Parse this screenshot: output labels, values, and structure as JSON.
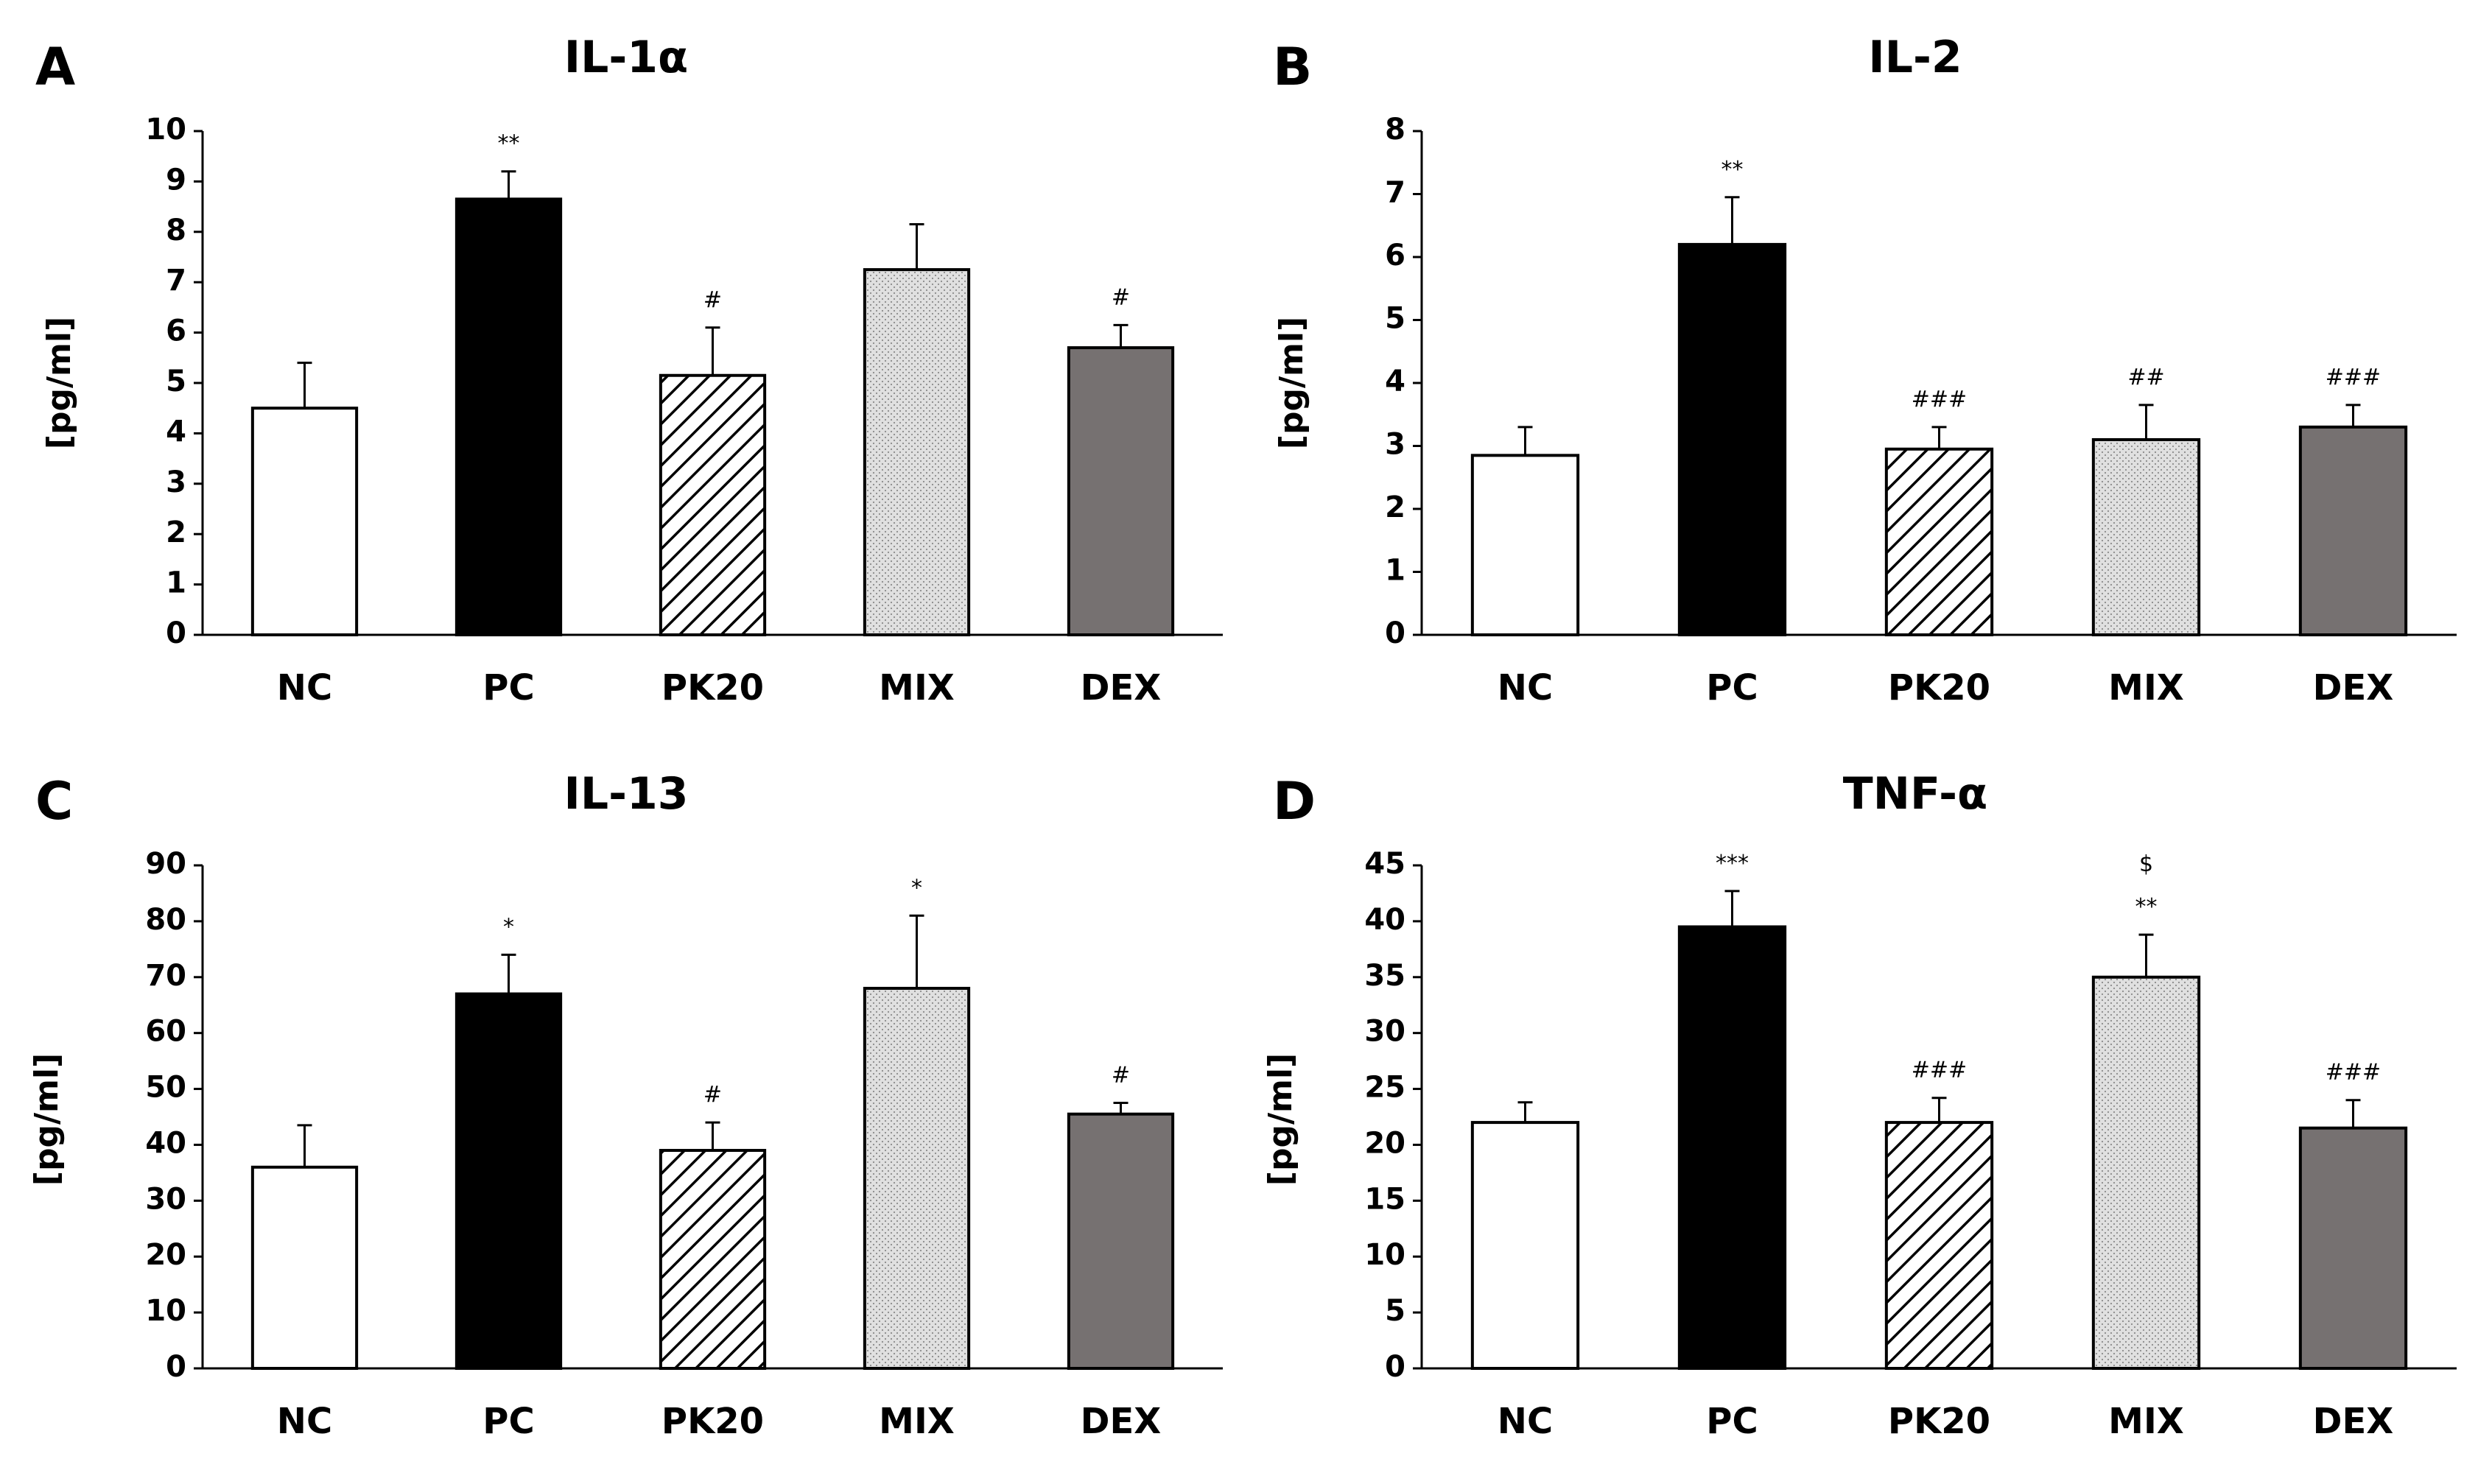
{
  "figure": {
    "legend": {
      "NC": {
        "fill": "#ffffff",
        "pattern": "none"
      },
      "PC": {
        "fill": "#000000",
        "pattern": "none"
      },
      "PK20": {
        "fill": "#ffffff",
        "pattern": "diagonal-hatch"
      },
      "MIX": {
        "fill": "#d9d9d9",
        "pattern": "dots"
      },
      "DEX": {
        "fill": "#767171",
        "pattern": "none"
      }
    }
  },
  "chart_data": [
    {
      "panel": "A",
      "type": "bar",
      "title": "IL-1α",
      "ylabel": "[pg/ml]",
      "categories": [
        "NC",
        "PC",
        "PK20",
        "MIX",
        "DEX"
      ],
      "values": [
        4.5,
        8.65,
        5.15,
        7.25,
        5.7
      ],
      "errors": [
        0.9,
        0.55,
        0.95,
        0.9,
        0.45
      ],
      "significance": [
        "",
        "**",
        "#",
        "",
        "#"
      ],
      "ylim": [
        0,
        10
      ],
      "yticks": [
        0,
        1,
        2,
        3,
        4,
        5,
        6,
        7,
        8,
        9,
        10
      ],
      "grid": false
    },
    {
      "panel": "B",
      "type": "bar",
      "title": "IL-2",
      "ylabel": "[pg/ml]",
      "categories": [
        "NC",
        "PC",
        "PK20",
        "MIX",
        "DEX"
      ],
      "values": [
        2.85,
        6.2,
        2.95,
        3.1,
        3.3
      ],
      "errors": [
        0.45,
        0.75,
        0.35,
        0.55,
        0.35
      ],
      "significance": [
        "",
        "**",
        "###",
        "##",
        "###"
      ],
      "ylim": [
        0,
        8
      ],
      "yticks": [
        0,
        1,
        2,
        3,
        4,
        5,
        6,
        7,
        8
      ],
      "grid": false
    },
    {
      "panel": "C",
      "type": "bar",
      "title": "IL-13",
      "ylabel": "[pg/ml]",
      "categories": [
        "NC",
        "PC",
        "PK20",
        "MIX",
        "DEX"
      ],
      "values": [
        36,
        67,
        39,
        68,
        45.5
      ],
      "errors": [
        7.5,
        7,
        5,
        13,
        2
      ],
      "significance": [
        "",
        "*",
        "#",
        "*",
        "#"
      ],
      "ylim": [
        0,
        90
      ],
      "yticks": [
        0,
        10,
        20,
        30,
        40,
        50,
        60,
        70,
        80,
        90
      ],
      "grid": false
    },
    {
      "panel": "D",
      "type": "bar",
      "title": "TNF-α",
      "ylabel": "[pg/ml]",
      "categories": [
        "NC",
        "PC",
        "PK20",
        "MIX",
        "DEX"
      ],
      "values": [
        22,
        39.5,
        22,
        35,
        21.5
      ],
      "errors": [
        1.8,
        3.2,
        2.2,
        3.8,
        2.5
      ],
      "significance": [
        "",
        "***",
        "###",
        "$\n**",
        "###"
      ],
      "ylim": [
        0,
        45
      ],
      "yticks": [
        0,
        5,
        10,
        15,
        20,
        25,
        30,
        35,
        40,
        45
      ],
      "grid": false
    }
  ]
}
